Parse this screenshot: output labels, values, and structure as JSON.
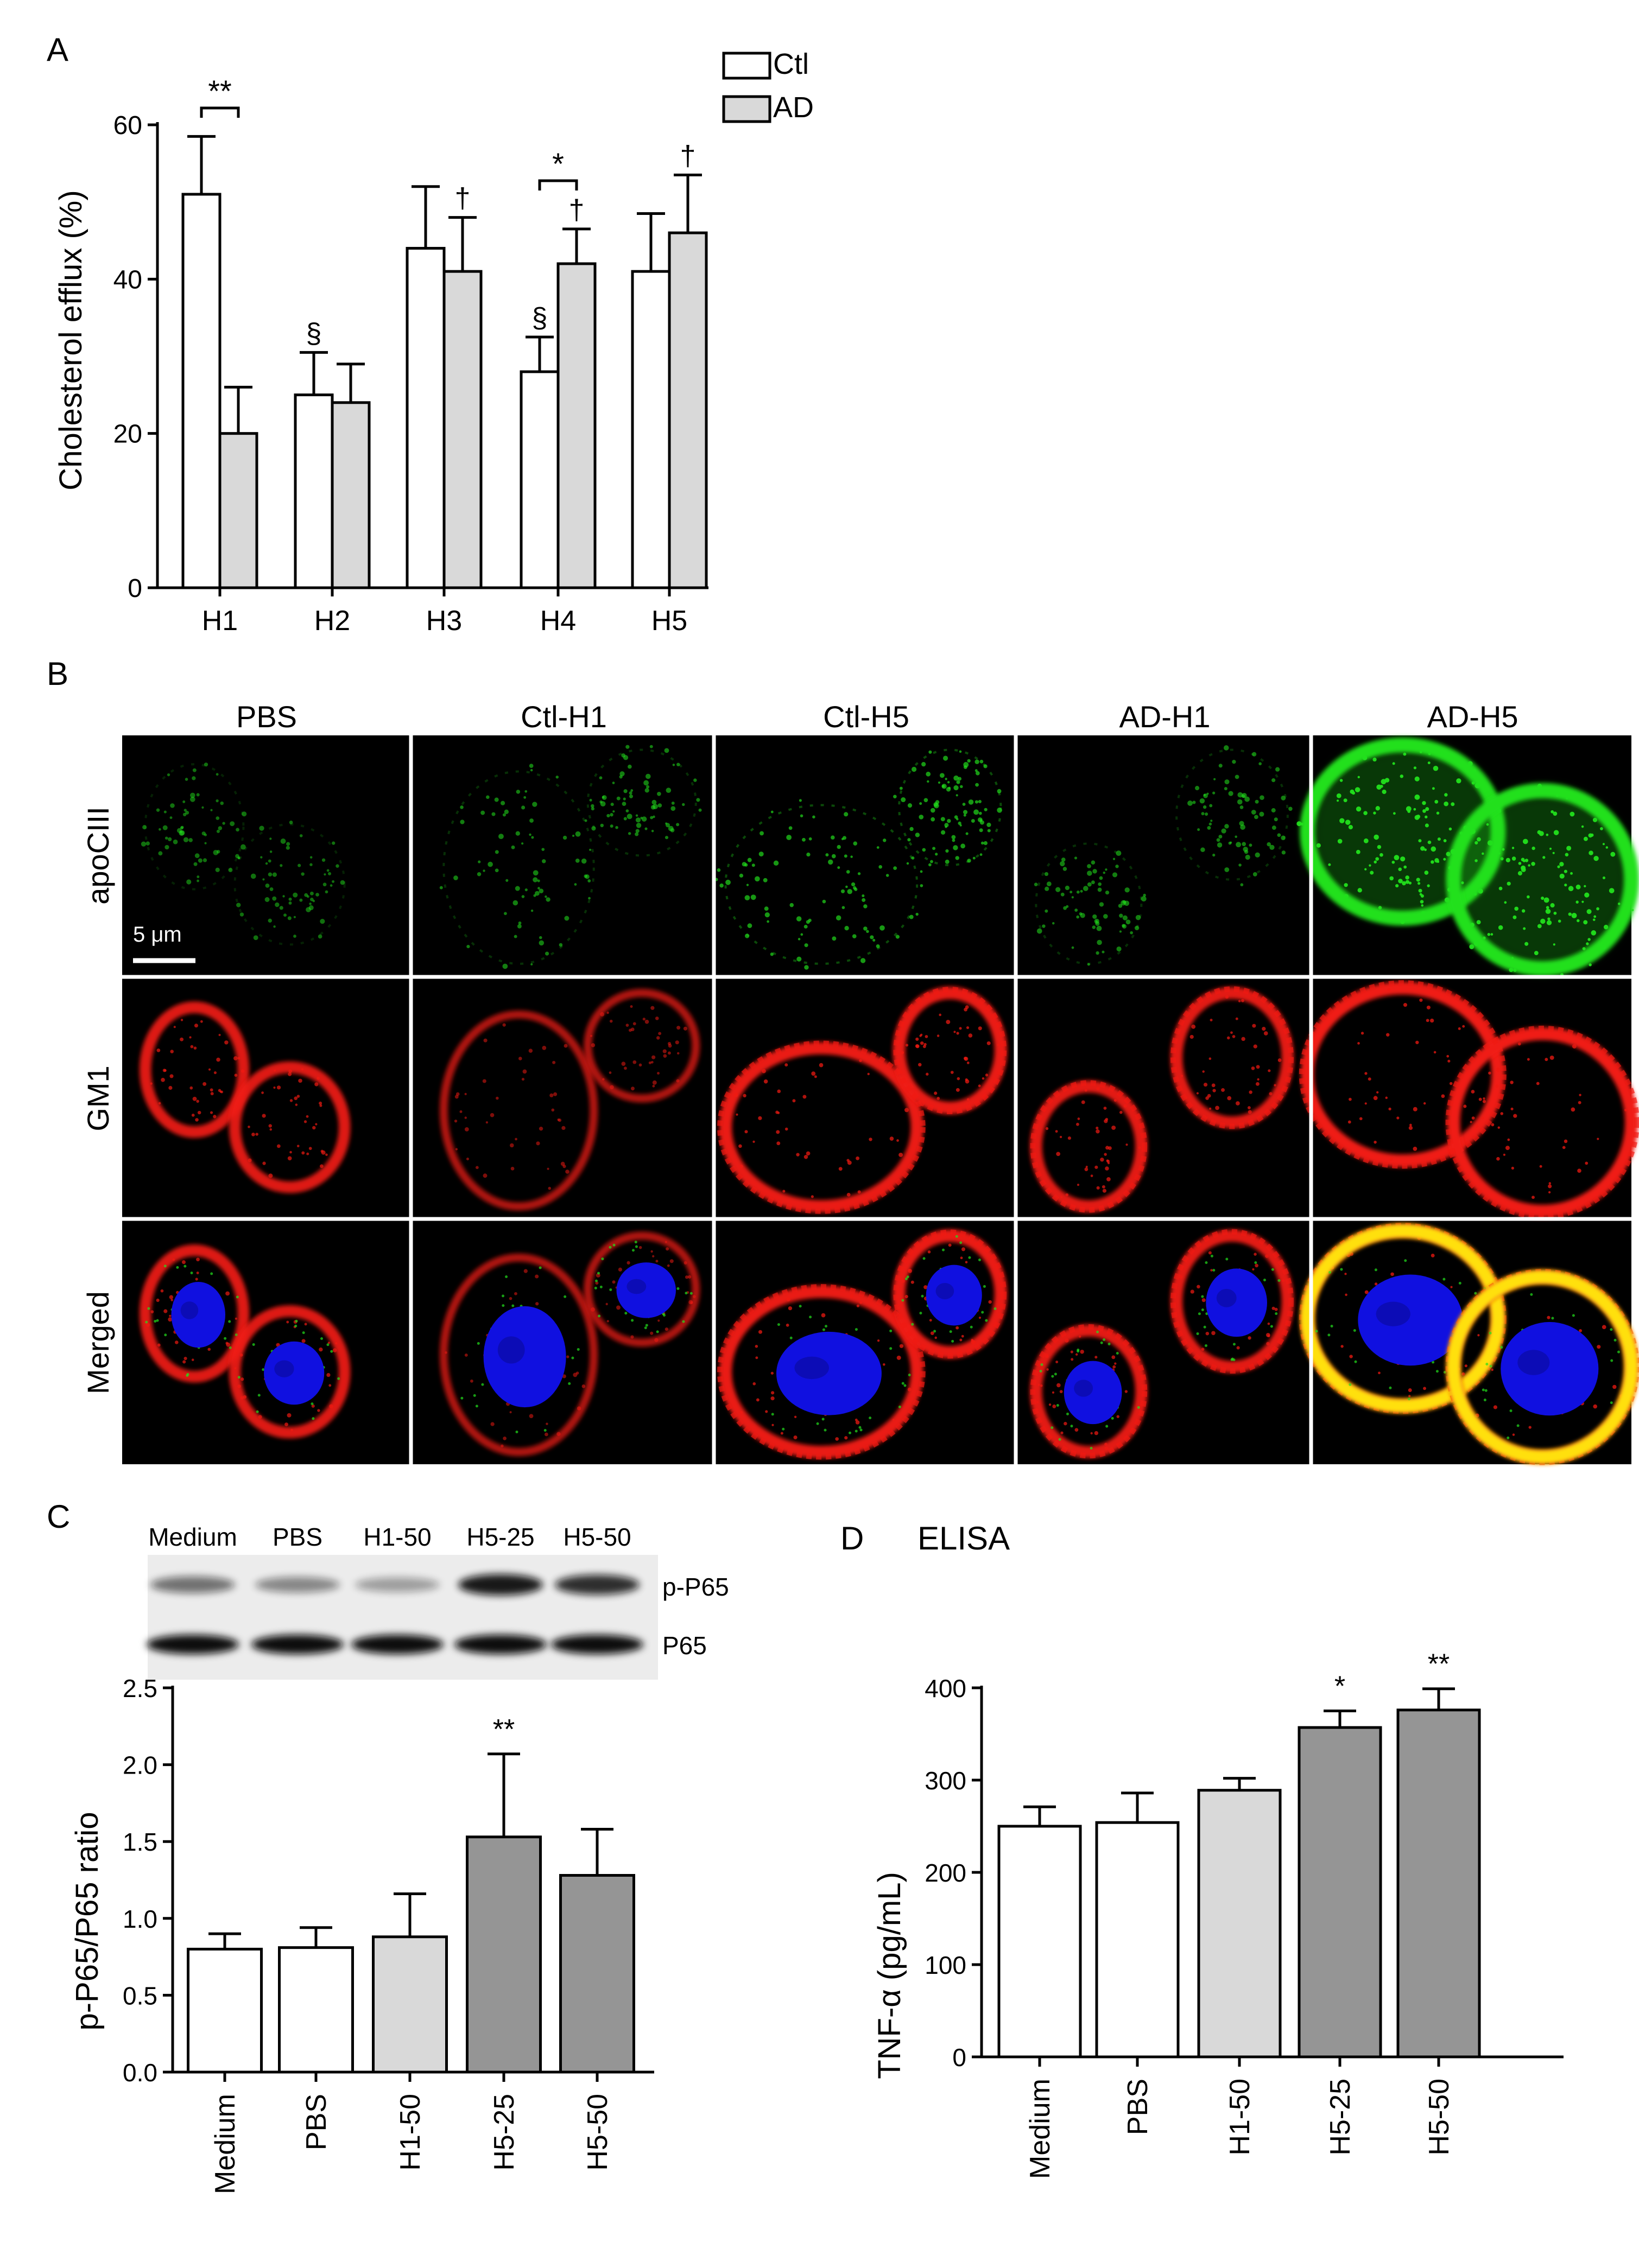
{
  "colors": {
    "ctl_fill": "#ffffff",
    "ad_fill": "#d9d9d9",
    "light_gray": "#d9d9d9",
    "dark_gray": "#959595",
    "stroke": "#000000",
    "green_stain": "#22e01c",
    "red_stain": "#f01a12",
    "blue_stain": "#1010e0",
    "yellow_stain": "#ffe010"
  },
  "panels": {
    "a": {
      "letter": "A"
    },
    "b": {
      "letter": "B",
      "columns": [
        "PBS",
        "Ctl-H1",
        "Ctl-H5",
        "AD-H1",
        "AD-H5"
      ],
      "rows": [
        "apoCIII",
        "GM1",
        "Merged"
      ],
      "scale_bar": "5 μm"
    },
    "c": {
      "letter": "C",
      "blot_lanes": [
        "Medium",
        "PBS",
        "H1-50",
        "H5-25",
        "H5-50"
      ],
      "blot_bands": [
        "p-P65",
        "P65"
      ],
      "blot_intensity": {
        "p-P65": [
          0.55,
          0.45,
          0.35,
          0.95,
          0.85
        ],
        "P65": [
          1,
          1,
          1,
          1,
          1
        ]
      }
    },
    "d": {
      "letter": "D",
      "heading": "ELISA"
    }
  },
  "chart_data": [
    {
      "type": "bar",
      "panel": "A",
      "ylabel": "Cholesterol efflux (%)",
      "ylim": [
        0,
        60
      ],
      "yticks": [
        0,
        20,
        40,
        60
      ],
      "categories": [
        "H1",
        "H2",
        "H3",
        "H4",
        "H5"
      ],
      "series": [
        {
          "name": "Ctl",
          "fill": "#ffffff",
          "values": [
            51,
            25,
            44,
            28,
            41
          ],
          "errors": [
            7.5,
            5.5,
            8,
            4.5,
            7.5
          ]
        },
        {
          "name": "AD",
          "fill": "#d9d9d9",
          "values": [
            20,
            24,
            41,
            42,
            46
          ],
          "errors": [
            6,
            5,
            7,
            4.5,
            7.5
          ]
        }
      ],
      "legend_position": "top-right",
      "annotations": [
        {
          "text": "**",
          "bracket": "H1"
        },
        {
          "text": "*",
          "bracket": "H4"
        },
        {
          "text": "§",
          "category": 1,
          "series": 0
        },
        {
          "text": "§",
          "category": 3,
          "series": 0
        },
        {
          "text": "†",
          "category": 2,
          "series": 1
        },
        {
          "text": "†",
          "category": 3,
          "series": 1
        },
        {
          "text": "†",
          "category": 4,
          "series": 1
        }
      ]
    },
    {
      "type": "bar",
      "panel": "C",
      "ylabel": "p-P65/P65 ratio",
      "ylim": [
        0,
        2.5
      ],
      "yticks": [
        "0.0",
        "0.5",
        "1.0",
        "1.5",
        "2.0",
        "2.5"
      ],
      "categories": [
        "Medium",
        "PBS",
        "H1-50",
        "H5-25",
        "H5-50"
      ],
      "values": [
        0.8,
        0.81,
        0.88,
        1.53,
        1.28
      ],
      "errors": [
        0.1,
        0.13,
        0.28,
        0.54,
        0.3
      ],
      "fills": [
        "#ffffff",
        "#ffffff",
        "#d9d9d9",
        "#959595",
        "#959595"
      ],
      "annotations": [
        {
          "text": "**",
          "category": 3
        }
      ]
    },
    {
      "type": "bar",
      "panel": "D",
      "ylabel": "TNF-α (pg/mL)",
      "ylim": [
        0,
        400
      ],
      "yticks": [
        0,
        100,
        200,
        300,
        400
      ],
      "categories": [
        "Medium",
        "PBS",
        "H1-50",
        "H5-25",
        "H5-50"
      ],
      "values": [
        250,
        254,
        289,
        357,
        376
      ],
      "errors": [
        21,
        32,
        13,
        18,
        23
      ],
      "fills": [
        "#ffffff",
        "#ffffff",
        "#d9d9d9",
        "#959595",
        "#959595"
      ],
      "annotations": [
        {
          "text": "*",
          "category": 3
        },
        {
          "text": "**",
          "category": 4
        }
      ]
    }
  ]
}
